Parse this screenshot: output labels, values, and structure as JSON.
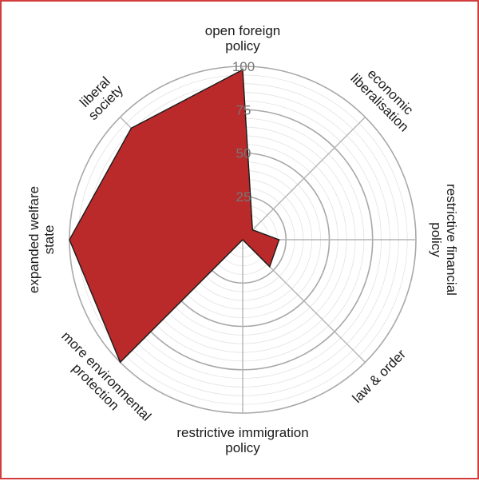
{
  "chart_data": {
    "type": "radar",
    "title": "",
    "axes": [
      {
        "key": "open_foreign_policy",
        "lines": [
          "open foreign",
          "policy"
        ]
      },
      {
        "key": "economic_liberalisation",
        "lines": [
          "economic",
          "liberalisation"
        ]
      },
      {
        "key": "restrictive_financial_policy",
        "lines": [
          "restrictive financial",
          "policy"
        ]
      },
      {
        "key": "law_and_order",
        "lines": [
          "law & order"
        ]
      },
      {
        "key": "restrictive_immigration_policy",
        "lines": [
          "restrictive immigration",
          "policy"
        ]
      },
      {
        "key": "more_environmental_protection",
        "lines": [
          "more environmental",
          "protection"
        ]
      },
      {
        "key": "expanded_welfare_state",
        "lines": [
          "expanded welfare",
          "state"
        ]
      },
      {
        "key": "liberal_society",
        "lines": [
          "liberal",
          "society"
        ]
      }
    ],
    "values": [
      98,
      8,
      21,
      22,
      0,
      100,
      100,
      91
    ],
    "rlim": [
      0,
      100
    ],
    "ticks": [
      "25",
      "50",
      "75",
      "100"
    ],
    "tick_values": [
      25,
      50,
      75,
      100
    ],
    "minor_step": 5,
    "colors": {
      "fill": "#bb2a2a",
      "stroke": "#1a1a1a",
      "grid": "#c8c8c8",
      "frame": "#d23c3c"
    }
  }
}
